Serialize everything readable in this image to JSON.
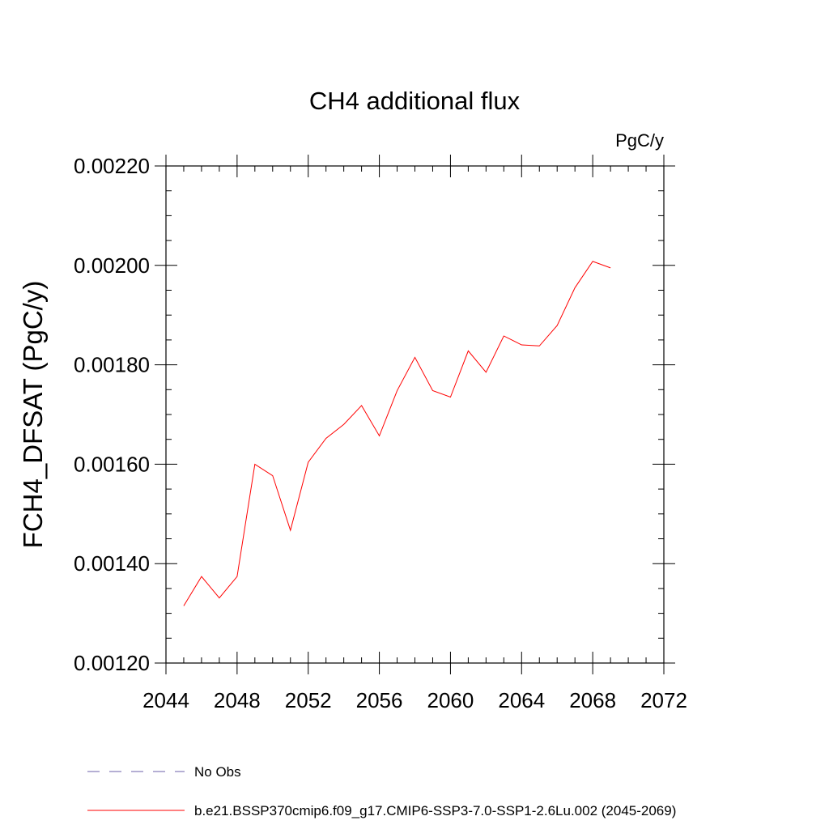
{
  "chart_data": {
    "type": "line",
    "title": "CH4 additional flux",
    "units_label": "PgC/y",
    "ylabel": "FCH4_DFSAT  (PgC/y)",
    "xlabel": "",
    "xlim": [
      2044,
      2072
    ],
    "ylim": [
      0.0012,
      0.0022
    ],
    "x_ticks": [
      2044,
      2048,
      2052,
      2056,
      2060,
      2064,
      2068,
      2072
    ],
    "x_tick_labels": [
      "2044",
      "2048",
      "2052",
      "2056",
      "2060",
      "2064",
      "2068",
      "2072"
    ],
    "y_ticks": [
      0.0012,
      0.0014,
      0.0016,
      0.0018,
      0.002,
      0.0022
    ],
    "y_tick_labels": [
      "0.00120",
      "0.00140",
      "0.00160",
      "0.00180",
      "0.00200",
      "0.00220"
    ],
    "x_minor_step": 1,
    "y_minor_step": 5e-05,
    "grid": false,
    "legend_position": "bottom",
    "series": [
      {
        "name": "b.e21.BSSP370cmip6.f09_g17.CMIP6-SSP3-7.0-SSP1-2.6Lu.002 (2045-2069)",
        "color": "#ff0000",
        "style": "solid",
        "x": [
          2045,
          2046,
          2047,
          2048,
          2049,
          2050,
          2051,
          2052,
          2053,
          2054,
          2055,
          2056,
          2057,
          2058,
          2059,
          2060,
          2061,
          2062,
          2063,
          2064,
          2065,
          2066,
          2067,
          2068,
          2069
        ],
        "y": [
          0.001315,
          0.001374,
          0.001331,
          0.001374,
          0.0016,
          0.001577,
          0.001467,
          0.001604,
          0.001652,
          0.00168,
          0.001718,
          0.001657,
          0.001748,
          0.001815,
          0.001748,
          0.001735,
          0.001828,
          0.001785,
          0.001858,
          0.00184,
          0.001838,
          0.001879,
          0.001955,
          0.002008,
          0.001995
        ]
      }
    ],
    "legend": [
      {
        "label": "No Obs",
        "color": "#6b5fa8",
        "style": "dashed"
      },
      {
        "label": "b.e21.BSSP370cmip6.f09_g17.CMIP6-SSP3-7.0-SSP1-2.6Lu.002 (2045-2069)",
        "color": "#ff0000",
        "style": "solid"
      }
    ]
  }
}
